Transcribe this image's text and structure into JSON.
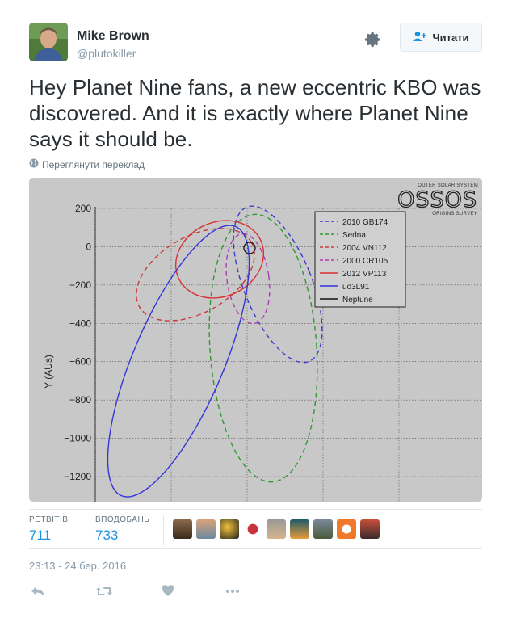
{
  "user": {
    "name": "Mike Brown",
    "handle": "@plutokiller",
    "follow_label": "Читати"
  },
  "tweet": {
    "text": "Hey Planet Nine fans, a new eccentric KBO was discovered. And it is exactly where Planet Nine says it should be.",
    "translate_label": "Переглянути переклад",
    "timestamp": "23:13 - 24 бер. 2016"
  },
  "stats": {
    "retweets_label": "РЕТВІТІВ",
    "retweets": "711",
    "likes_label": "ВПОДОБАНЬ",
    "likes": "733"
  },
  "icons": [
    "gear-icon",
    "follow-icon",
    "globe-icon",
    "reply-icon",
    "retweet-icon",
    "like-icon",
    "more-icon"
  ],
  "colors": {
    "link": "#1b95e0",
    "text": "#292f33",
    "muted": "#8899a6"
  },
  "figure": {
    "logo": "OSSOS",
    "logo_top": "OUTER SOLAR SYSTEM",
    "logo_bottom": "ORIGINS SURVEY",
    "ylabel": "Y (AUs)",
    "yticks": [
      "200",
      "0",
      "−200",
      "−400",
      "−600",
      "−800",
      "−1000",
      "−1200"
    ]
  },
  "chart_data": {
    "type": "line",
    "ylabel": "Y (AUs)",
    "ylim": [
      -1300,
      200
    ],
    "yticks": [
      200,
      0,
      -200,
      -400,
      -600,
      -800,
      -1000,
      -1200
    ],
    "grid": true,
    "legend_position": "top-right",
    "series": [
      {
        "name": "2010 GB174",
        "color": "#3b3bd0",
        "style": "dashed"
      },
      {
        "name": "Sedna",
        "color": "#2e9a2e",
        "style": "dashed"
      },
      {
        "name": "2004 VN112",
        "color": "#c83a3a",
        "style": "dashed"
      },
      {
        "name": "2000 CR105",
        "color": "#b03ab0",
        "style": "dashed"
      },
      {
        "name": "2012 VP113",
        "color": "#d83030",
        "style": "solid"
      },
      {
        "name": "uo3L91",
        "color": "#3434d8",
        "style": "solid"
      },
      {
        "name": "Neptune",
        "color": "#111111",
        "style": "solid"
      }
    ]
  }
}
